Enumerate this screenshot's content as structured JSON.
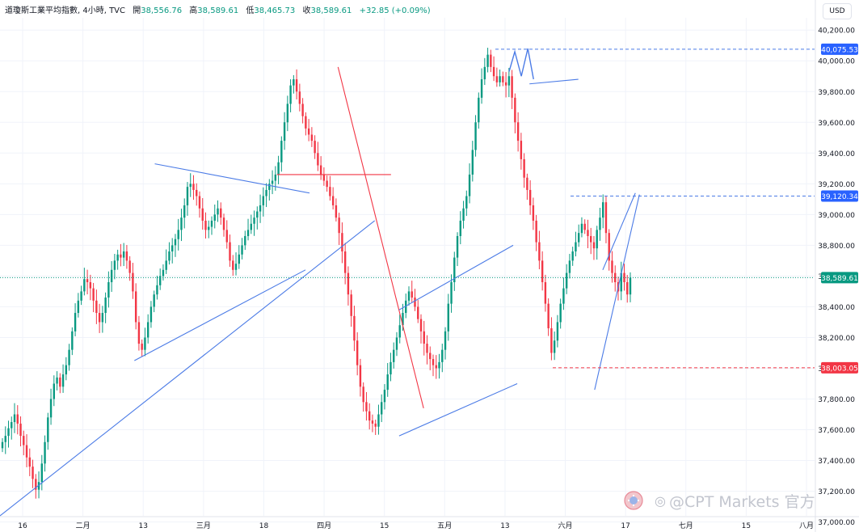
{
  "header": {
    "title": "道瓊斯工業平均指數, 4小時, TVC",
    "open_label": "開",
    "open": "38,556.76",
    "high_label": "高",
    "high": "38,589.61",
    "low_label": "低",
    "low": "38,465.73",
    "close_label": "收",
    "close": "38,589.61",
    "change": "+32.85 (+0.09%)"
  },
  "currency_button": "USD",
  "watermark": {
    "text": "@CPT Markets 官方",
    "platform_icon": "weibo-icon",
    "logo_icon": "cpt-logo-icon"
  },
  "colors": {
    "up": "#089981",
    "down": "#f23645",
    "trendline": "#4b7be6",
    "resistance": "#f23645",
    "current": "#089981"
  },
  "chart_data": {
    "type": "candlestick",
    "title": "道瓊斯工業平均指數, 4小時, TVC",
    "ylim": [
      37040,
      40280
    ],
    "y_ticks": [
      "37,000.00",
      "37,200.00",
      "37,400.00",
      "37,600.00",
      "37,800.00",
      "38,000.00",
      "38,200.00",
      "38,400.00",
      "38,600.00",
      "38,800.00",
      "39,000.00",
      "39,200.00",
      "39,400.00",
      "39,600.00",
      "39,800.00",
      "40,000.00",
      "40,200.00"
    ],
    "x_ticks": [
      "16",
      "二月",
      "13",
      "三月",
      "18",
      "四月",
      "15",
      "五月",
      "13",
      "六月",
      "17",
      "七月",
      "15",
      "八月"
    ],
    "grid": true,
    "close_series": [
      37520,
      37560,
      37610,
      37650,
      37700,
      37640,
      37560,
      37500,
      37420,
      37360,
      37280,
      37210,
      37260,
      37380,
      37520,
      37680,
      37800,
      37900,
      37940,
      37880,
      37960,
      38020,
      38120,
      38240,
      38360,
      38440,
      38500,
      38580,
      38560,
      38520,
      38440,
      38360,
      38300,
      38360,
      38460,
      38560,
      38640,
      38700,
      38740,
      38720,
      38760,
      38700,
      38620,
      38500,
      38300,
      38160,
      38120,
      38200,
      38300,
      38400,
      38480,
      38540,
      38600,
      38640,
      38700,
      38760,
      38800,
      38840,
      38900,
      38980,
      39060,
      39180,
      39200,
      39160,
      39120,
      39040,
      38960,
      38900,
      38920,
      38960,
      39000,
      39040,
      38980,
      38900,
      38820,
      38700,
      38640,
      38680,
      38740,
      38800,
      38860,
      38900,
      38940,
      38980,
      39020,
      39060,
      39120,
      39160,
      39200,
      39220,
      39260,
      39340,
      39480,
      39600,
      39720,
      39840,
      39880,
      39800,
      39720,
      39640,
      39560,
      39520,
      39480,
      39400,
      39320,
      39260,
      39220,
      39180,
      39120,
      39060,
      38980,
      38880,
      38760,
      38620,
      38480,
      38340,
      38180,
      38020,
      37880,
      37780,
      37720,
      37660,
      37640,
      37620,
      37700,
      37780,
      37860,
      37960,
      38040,
      38120,
      38200,
      38280,
      38360,
      38440,
      38500,
      38460,
      38400,
      38320,
      38240,
      38160,
      38100,
      38060,
      38020,
      38000,
      38040,
      38120,
      38240,
      38420,
      38560,
      38720,
      38860,
      38960,
      39040,
      39120,
      39260,
      39420,
      39600,
      39760,
      39880,
      39960,
      40040,
      39960,
      39900,
      39860,
      39900,
      39860,
      39840,
      39900,
      39760,
      39600,
      39480,
      39360,
      39240,
      39160,
      39060,
      38960,
      38820,
      38700,
      38560,
      38420,
      38260,
      38100,
      38180,
      38300,
      38420,
      38520,
      38620,
      38700,
      38760,
      38820,
      38880,
      38940,
      38900,
      38860,
      38820,
      38780,
      38900,
      38980,
      39080,
      38880,
      38700,
      38620,
      38560,
      38500,
      38620,
      38560,
      38480,
      38589.61
    ],
    "current_price": 38589.61,
    "price_labels": [
      {
        "name": "resistance-high",
        "value": 40075.53,
        "label": "40,075.53"
      },
      {
        "name": "resistance-mid",
        "value": 39120.34,
        "label": "39,120.34"
      },
      {
        "name": "current",
        "value": 38589.61,
        "label": "38,589.61"
      },
      {
        "name": "support-low",
        "value": 38003.05,
        "label": "38,003.05"
      }
    ],
    "trendlines": [
      {
        "color": "blue",
        "from": [
          0.0,
          37040
        ],
        "to": [
          0.46,
          38960
        ]
      },
      {
        "color": "blue",
        "from": [
          0.165,
          38050
        ],
        "to": [
          0.375,
          38640
        ]
      },
      {
        "color": "blue",
        "from": [
          0.19,
          39330
        ],
        "to": [
          0.38,
          39140
        ]
      },
      {
        "color": "red",
        "from": [
          0.415,
          39960
        ],
        "to": [
          0.52,
          37740
        ]
      },
      {
        "color": "red",
        "from": [
          0.34,
          39260
        ],
        "to": [
          0.48,
          39260
        ]
      },
      {
        "color": "blue",
        "from": [
          0.49,
          38380
        ],
        "to": [
          0.63,
          38800
        ]
      },
      {
        "color": "blue",
        "from": [
          0.49,
          37560
        ],
        "to": [
          0.635,
          37900
        ]
      },
      {
        "color": "blue",
        "from": [
          0.65,
          39850
        ],
        "to": [
          0.71,
          39880
        ]
      },
      {
        "color": "blue",
        "from": [
          0.73,
          37860
        ],
        "to": [
          0.785,
          39130
        ]
      },
      {
        "color": "blue",
        "from": [
          0.74,
          38640
        ],
        "to": [
          0.78,
          39140
        ]
      }
    ]
  }
}
